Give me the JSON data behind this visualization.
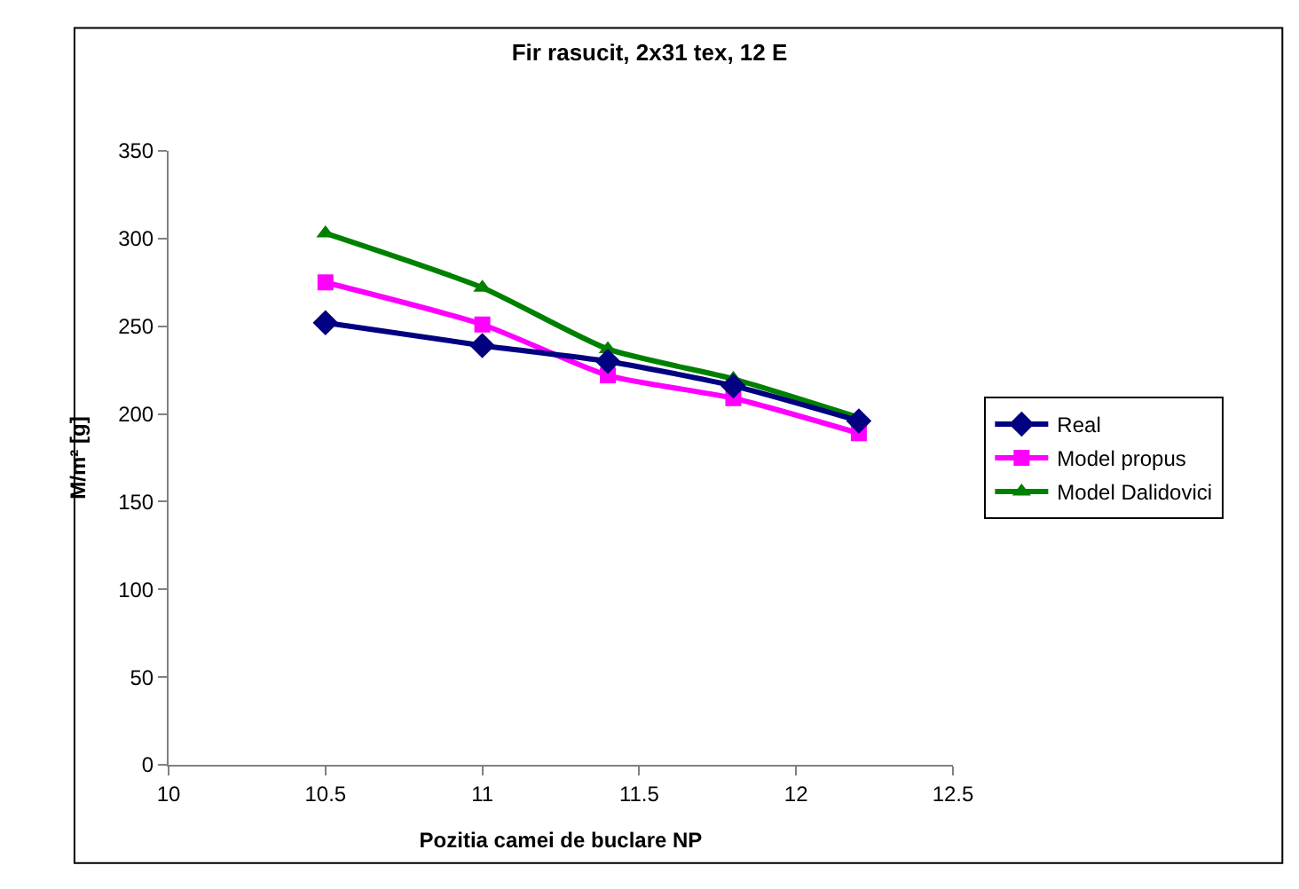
{
  "chart_data": {
    "type": "line",
    "title": "Fir rasucit, 2x31 tex, 12 E",
    "xlabel": "Pozitia camei de buclare NP",
    "ylabel": "M/m² [g]",
    "x": [
      10.5,
      11,
      11.4,
      11.8,
      12.2
    ],
    "series": [
      {
        "name": "Real",
        "color": "#000080",
        "marker": "diamond",
        "values": [
          252,
          239,
          230,
          216,
          196
        ]
      },
      {
        "name": "Model propus",
        "color": "#ff00ff",
        "marker": "square",
        "values": [
          275,
          251,
          222,
          209,
          189
        ]
      },
      {
        "name": "Model Dalidovici",
        "color": "#008000",
        "marker": "triangle",
        "values": [
          303,
          272,
          237,
          220,
          198
        ]
      }
    ],
    "xlim": [
      10,
      12.5
    ],
    "xticks": [
      10,
      10.5,
      11,
      11.5,
      12,
      12.5
    ],
    "ylim": [
      0,
      350
    ],
    "yticks": [
      0,
      50,
      100,
      150,
      200,
      250,
      300,
      350
    ],
    "grid": false,
    "legend": "right"
  }
}
